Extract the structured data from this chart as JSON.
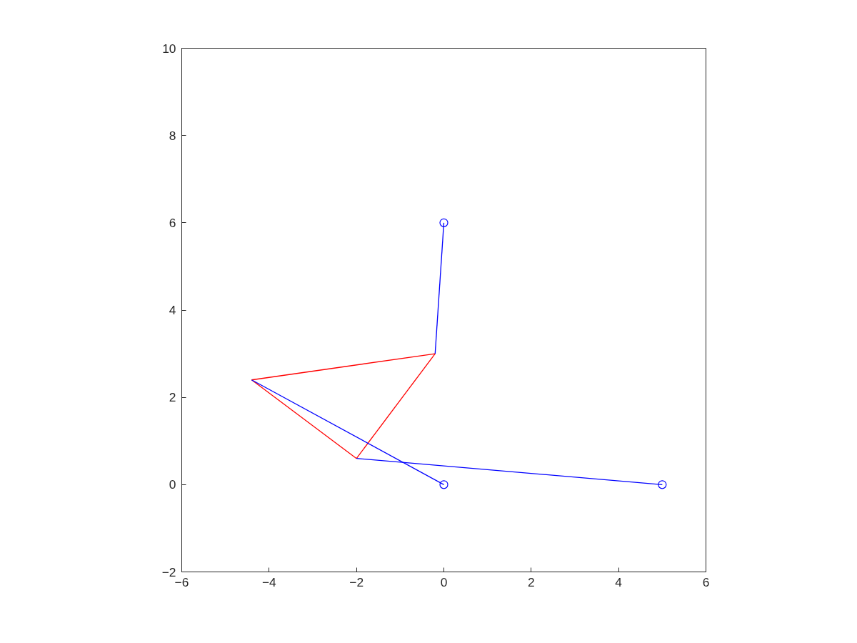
{
  "chart_data": {
    "type": "line",
    "xlim": [
      -6,
      6
    ],
    "ylim": [
      -2,
      10
    ],
    "xticks": [
      -6,
      -4,
      -2,
      0,
      2,
      4,
      6
    ],
    "yticks": [
      -2,
      0,
      2,
      4,
      6,
      8,
      10
    ],
    "grid": false,
    "series": [
      {
        "color": "#ff0000",
        "x": [
          -4.4,
          -0.2
        ],
        "values": [
          2.4,
          3
        ]
      },
      {
        "color": "#ff0000",
        "x": [
          -4.4,
          -2
        ],
        "values": [
          2.4,
          0.6
        ]
      },
      {
        "color": "#ff0000",
        "x": [
          -2,
          -0.2
        ],
        "values": [
          0.6,
          3
        ]
      },
      {
        "color": "#0000ff",
        "x": [
          0,
          -0.2
        ],
        "values": [
          6,
          3
        ]
      },
      {
        "color": "#0000ff",
        "x": [
          -4.4,
          0
        ],
        "values": [
          2.4,
          0
        ]
      },
      {
        "color": "#0000ff",
        "x": [
          -2,
          5
        ],
        "values": [
          0.6,
          0
        ]
      },
      {
        "type": "scatter",
        "color": "#0000ff",
        "marker": "circle",
        "x": [
          0,
          0,
          5
        ],
        "values": [
          6,
          0,
          0
        ]
      }
    ]
  }
}
